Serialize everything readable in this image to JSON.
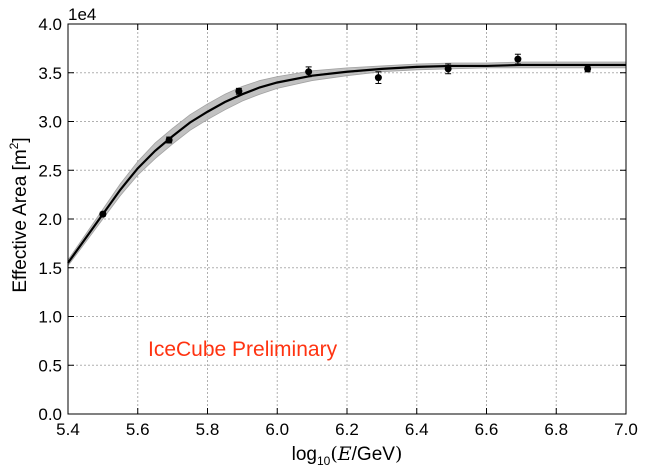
{
  "chart_data": {
    "type": "scatter",
    "title": "",
    "xlabel": {
      "prefix": "log",
      "subscript": "10",
      "variable": "E",
      "unit": "/GeV"
    },
    "ylabel": {
      "text": "Effective Area [m",
      "sup": "2",
      "suffix": "]"
    },
    "y_multiplier": "1e4",
    "xlim": [
      5.4,
      7.0
    ],
    "ylim": [
      0.0,
      4.0
    ],
    "x_ticks": [
      5.4,
      5.6,
      5.8,
      6.0,
      6.2,
      6.4,
      6.6,
      6.8,
      7.0
    ],
    "x_tick_labels": [
      "5.4",
      "5.6",
      "5.8",
      "6.0",
      "6.2",
      "6.4",
      "6.6",
      "6.8",
      "7.0"
    ],
    "y_ticks": [
      0.0,
      0.5,
      1.0,
      1.5,
      2.0,
      2.5,
      3.0,
      3.5,
      4.0
    ],
    "y_tick_labels": [
      "0.0",
      "0.5",
      "1.0",
      "1.5",
      "2.0",
      "2.5",
      "3.0",
      "3.5",
      "4.0"
    ],
    "grid": true,
    "annotation": {
      "text": "IceCube Preliminary",
      "color": "#ff3311"
    },
    "series": [
      {
        "kind": "points_with_errorbars",
        "color": "#000000",
        "x": [
          5.5,
          5.69,
          5.89,
          6.09,
          6.29,
          6.49,
          6.69,
          6.89
        ],
        "y": [
          2.05,
          2.81,
          3.31,
          3.51,
          3.45,
          3.54,
          3.64,
          3.54
        ],
        "yerr": [
          0.02,
          0.03,
          0.03,
          0.05,
          0.06,
          0.05,
          0.05,
          0.03
        ]
      },
      {
        "kind": "fit_curve",
        "color": "#000000",
        "band_color": "#bbbbbb",
        "x": [
          5.4,
          5.45,
          5.5,
          5.55,
          5.6,
          5.65,
          5.7,
          5.75,
          5.8,
          5.85,
          5.9,
          5.95,
          6.0,
          6.1,
          6.2,
          6.3,
          6.4,
          6.5,
          6.6,
          6.7,
          6.8,
          6.9,
          7.0
        ],
        "y": [
          1.55,
          1.8,
          2.05,
          2.3,
          2.52,
          2.7,
          2.85,
          2.99,
          3.1,
          3.2,
          3.28,
          3.35,
          3.4,
          3.47,
          3.51,
          3.54,
          3.56,
          3.57,
          3.57,
          3.58,
          3.58,
          3.58,
          3.58
        ],
        "band_lower": [
          1.52,
          1.76,
          2.0,
          2.24,
          2.45,
          2.62,
          2.77,
          2.91,
          3.02,
          3.12,
          3.21,
          3.28,
          3.34,
          3.42,
          3.47,
          3.51,
          3.53,
          3.54,
          3.55,
          3.55,
          3.55,
          3.55,
          3.55
        ],
        "band_upper": [
          1.58,
          1.84,
          2.1,
          2.36,
          2.59,
          2.78,
          2.93,
          3.07,
          3.18,
          3.28,
          3.36,
          3.42,
          3.46,
          3.52,
          3.55,
          3.57,
          3.59,
          3.6,
          3.6,
          3.61,
          3.61,
          3.61,
          3.61
        ]
      }
    ]
  }
}
